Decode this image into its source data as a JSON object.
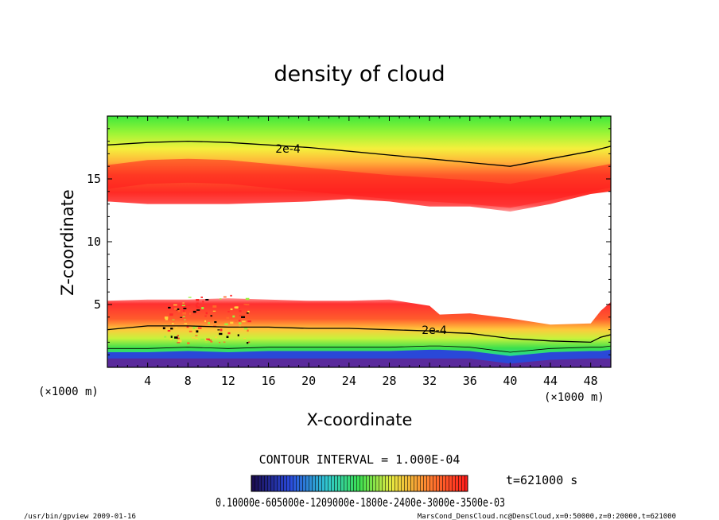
{
  "chart_data": {
    "type": "heatmap",
    "title": "density of cloud",
    "xlabel": "X-coordinate",
    "ylabel": "Z-coordinate",
    "x_unit": "(×1000 m)",
    "x_unit_right": "(×1000 m)",
    "xlim": [
      0,
      50
    ],
    "ylim": [
      0,
      20
    ],
    "x_ticks": [
      "4",
      "8",
      "12",
      "16",
      "20",
      "24",
      "28",
      "32",
      "36",
      "40",
      "44",
      "48"
    ],
    "x_tick_values": [
      4,
      8,
      12,
      16,
      20,
      24,
      28,
      32,
      36,
      40,
      44,
      48
    ],
    "y_ticks": [
      "5",
      "10",
      "15"
    ],
    "y_tick_values": [
      5,
      10,
      15
    ],
    "contour_interval": "CONTOUR INTERVAL = 1.000E-04",
    "contour_labels": [
      "2e-4",
      "2e-4"
    ],
    "time": "t=621000 s",
    "colorbar_labels": "0.10000e-605000e-1209000e-1800e-2400e-3000e-3500e-03",
    "colorbar_range": [
      0.0001,
      0.00035
    ],
    "colors": {
      "max": "#ff1a1a",
      "high": "#ff8a2a",
      "mid": "#ffe84a",
      "low": "#8cf53c",
      "lower": "#24d68c",
      "min": "#2a30c8",
      "floor": "#5a2a9c"
    },
    "upper_layer": {
      "x": [
        0,
        4,
        8,
        12,
        16,
        20,
        24,
        28,
        32,
        36,
        40,
        44,
        48,
        50
      ],
      "bottom": [
        13.2,
        13.0,
        13.0,
        13.0,
        13.1,
        13.2,
        13.4,
        13.2,
        12.8,
        12.8,
        12.4,
        13.0,
        13.8,
        14.0
      ],
      "core": [
        15.2,
        15.6,
        15.7,
        15.6,
        15.3,
        15.0,
        14.7,
        14.4,
        14.2,
        14.0,
        13.7,
        14.3,
        15.0,
        15.3
      ],
      "contour_2e4": [
        17.7,
        17.9,
        18.0,
        17.9,
        17.7,
        17.5,
        17.2,
        16.9,
        16.6,
        16.3,
        16.0,
        16.6,
        17.2,
        17.6
      ],
      "top": [
        20,
        20,
        20,
        20,
        20,
        20,
        20,
        20,
        20,
        20,
        20,
        20,
        20,
        20
      ]
    },
    "lower_layer": {
      "x": [
        0,
        4,
        8,
        12,
        16,
        20,
        24,
        28,
        32,
        33,
        36,
        40,
        44,
        48,
        49,
        50
      ],
      "bottom": [
        0.0,
        0.0,
        0.0,
        0.0,
        0.0,
        0.0,
        0.0,
        0.0,
        0.0,
        0.0,
        0.0,
        0.0,
        0.0,
        0.0,
        0.0,
        0.0
      ],
      "purple_top": [
        0.7,
        0.7,
        0.7,
        0.7,
        0.7,
        0.7,
        0.7,
        0.7,
        0.7,
        0.7,
        0.7,
        0.3,
        0.6,
        0.7,
        0.7,
        0.7
      ],
      "blue_top": [
        1.2,
        1.2,
        1.3,
        1.2,
        1.3,
        1.3,
        1.3,
        1.3,
        1.4,
        1.4,
        1.3,
        0.9,
        1.2,
        1.3,
        1.3,
        1.4
      ],
      "contour_2e4": [
        3.0,
        3.3,
        3.3,
        3.2,
        3.2,
        3.1,
        3.1,
        3.0,
        2.9,
        2.8,
        2.7,
        2.3,
        2.1,
        2.0,
        2.4,
        2.6
      ],
      "top": [
        5.3,
        5.4,
        5.4,
        5.5,
        5.4,
        5.3,
        5.3,
        5.4,
        4.9,
        4.2,
        4.3,
        3.9,
        3.4,
        3.5,
        4.5,
        5.2
      ]
    }
  },
  "footer": {
    "left": "/usr/bin/gpview  2009-01-16",
    "right": "MarsCond_DensCloud.nc@DensCloud,x=0:50000,z=0:20000,t=621000"
  }
}
